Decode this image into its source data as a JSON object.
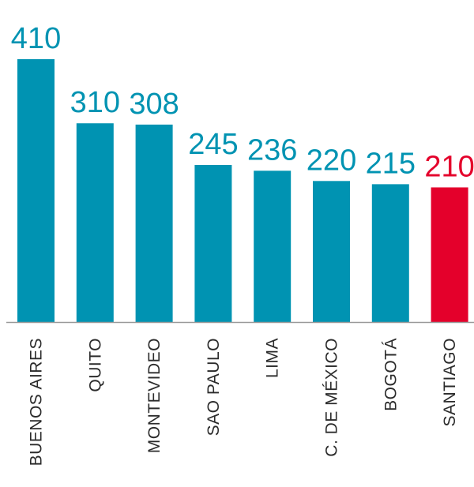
{
  "colors": {
    "bar": "#0093B2",
    "highlight": "#E4002B",
    "axis": "#999999",
    "label": "#2b2b2b"
  },
  "chart_data": {
    "type": "bar",
    "title": "",
    "xlabel": "",
    "ylabel": "",
    "ylim": [
      0,
      410
    ],
    "grid": false,
    "legend": "none",
    "categories": [
      "BUENOS AIRES",
      "QUITO",
      "MONTEVIDEO",
      "SAO PAULO",
      "LIMA",
      "C. DE MÉXICO",
      "BOGOTÁ",
      "SANTIAGO"
    ],
    "values": [
      410,
      310,
      308,
      245,
      236,
      220,
      215,
      210
    ],
    "data_labels": [
      "410",
      "310",
      "308",
      "245",
      "236",
      "220",
      "215",
      "210"
    ],
    "highlight_category": "SANTIAGO"
  }
}
